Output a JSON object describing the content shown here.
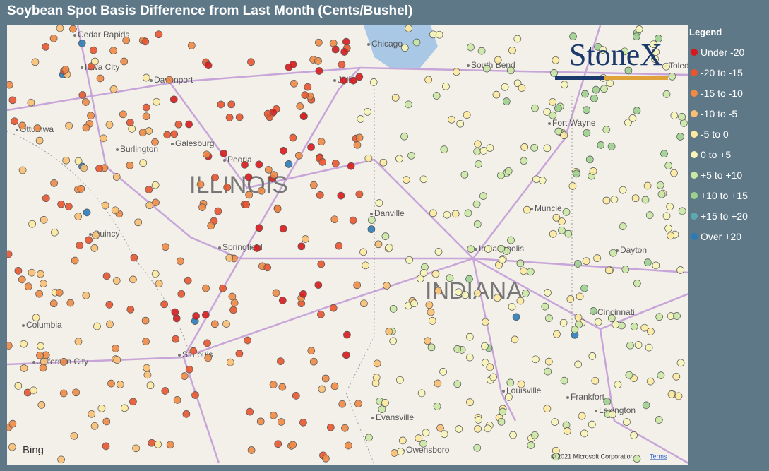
{
  "title": "Soybean Spot Basis Difference from Last Month (Cents/Bushel)",
  "legend": {
    "title": "Legend",
    "items": [
      {
        "label": "Under -20",
        "color": "#d7191c"
      },
      {
        "label": "-20 to -15",
        "color": "#e8552f"
      },
      {
        "label": "-15 to -10",
        "color": "#f08a45"
      },
      {
        "label": "-10 to -5",
        "color": "#f9bf72"
      },
      {
        "label": "-5 to 0",
        "color": "#fde9a0"
      },
      {
        "label": "0 to +5",
        "color": "#f7f5b8"
      },
      {
        "label": "+5 to +10",
        "color": "#cbe7a4"
      },
      {
        "label": "+10 to +15",
        "color": "#9dd08f"
      },
      {
        "label": "+15 to +20",
        "color": "#5ea9b0"
      },
      {
        "label": "Over +20",
        "color": "#2c7bb6"
      }
    ]
  },
  "map": {
    "states": [
      "ILLINOIS",
      "INDIANA"
    ],
    "places": [
      "Cedar Rapids",
      "Iowa City",
      "Davenport",
      "Ottumwa",
      "Burlington",
      "Galesburg",
      "Peoria",
      "Quincy",
      "Springfield",
      "Columbia",
      "Jefferson City",
      "St Louis",
      "Chicago",
      "Joliet",
      "South Bend",
      "Toledo",
      "Fort Wayne",
      "Muncie",
      "Danville",
      "Indianapolis",
      "Dayton",
      "Cincinnati",
      "Louisville",
      "Frankfort",
      "Lexington",
      "Evansville",
      "Owensboro"
    ],
    "logo": "StoneX",
    "provider": "Bing",
    "attribution": "© 2021 Microsoft Corporation",
    "terms": "Terms"
  }
}
